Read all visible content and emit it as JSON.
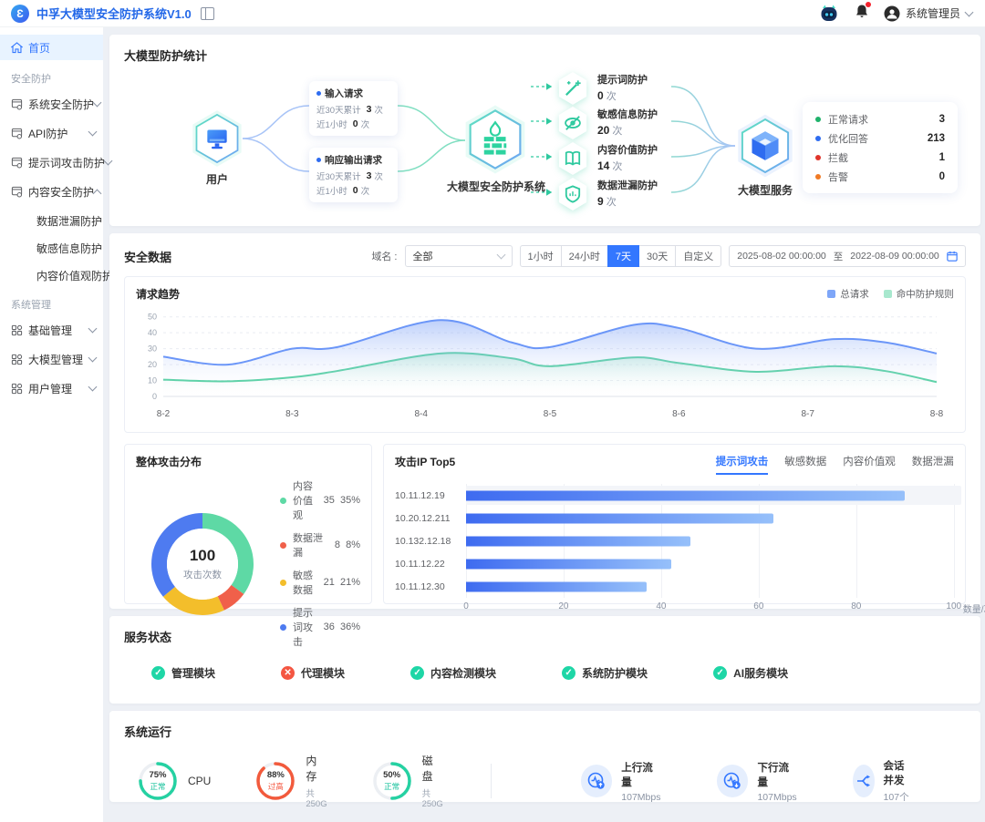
{
  "header": {
    "title": "中孚大模型安全防护系统V1.0",
    "user_name": "系统管理员"
  },
  "sidebar": {
    "home": "首页",
    "groups": [
      {
        "label": "安全防护",
        "items": [
          {
            "label": "系统安全防护"
          },
          {
            "label": "API防护"
          },
          {
            "label": "提示词攻击防护"
          },
          {
            "label": "内容安全防护",
            "children": [
              "数据泄漏防护",
              "敏感信息防护",
              "内容价值观防护"
            ]
          }
        ]
      },
      {
        "label": "系统管理",
        "items": [
          {
            "label": "基础管理"
          },
          {
            "label": "大模型管理"
          },
          {
            "label": "用户管理"
          }
        ]
      }
    ]
  },
  "protection_overview": {
    "title": "大模型防护统计",
    "user_label": "用户",
    "system_label": "大模型安全防护系统",
    "service_label": "大模型服务",
    "request_cards": [
      {
        "title": "输入请求",
        "rows": [
          {
            "label": "近30天累计",
            "value": "3",
            "unit": "次"
          },
          {
            "label": "近1小时",
            "value": "0",
            "unit": "次"
          }
        ]
      },
      {
        "title": "响应输出请求",
        "rows": [
          {
            "label": "近30天累计",
            "value": "3",
            "unit": "次"
          },
          {
            "label": "近1小时",
            "value": "0",
            "unit": "次"
          }
        ]
      }
    ],
    "protections": [
      {
        "icon": "wand-icon",
        "label": "提示词防护",
        "value": "0",
        "unit": "次"
      },
      {
        "icon": "eye-off-icon",
        "label": "敏感信息防护",
        "value": "20",
        "unit": "次"
      },
      {
        "icon": "book-icon",
        "label": "内容价值防护",
        "value": "14",
        "unit": "次"
      },
      {
        "icon": "shield-chart-icon",
        "label": "数据泄漏防护",
        "value": "9",
        "unit": "次"
      }
    ],
    "service_stats": [
      {
        "label": "正常请求",
        "value": "3",
        "color": "#1FB26B"
      },
      {
        "label": "优化回答",
        "value": "213",
        "color": "#2E6CF0"
      },
      {
        "label": "拦截",
        "value": "1",
        "color": "#E0342B"
      },
      {
        "label": "告警",
        "value": "0",
        "color": "#F07A24"
      }
    ]
  },
  "security_data": {
    "title": "安全数据",
    "domain_label": "域名 :",
    "domain_value": "全部",
    "time_filters": [
      "1小时",
      "24小时",
      "7天",
      "30天",
      "自定义"
    ],
    "active_filter": "7天",
    "date_from": "2025-08-02 00:00:00",
    "date_separator": "至",
    "date_to": "2022-08-09 00:00:00"
  },
  "chart_data": [
    {
      "id": "request-trend",
      "type": "area",
      "title": "请求趋势",
      "x_ticks": [
        "8-2",
        "8-3",
        "8-4",
        "8-5",
        "8-6",
        "8-7",
        "8-8"
      ],
      "y_ticks": [
        0,
        10,
        20,
        30,
        40,
        50
      ],
      "ylim": [
        0,
        55
      ],
      "x": [
        0,
        0.5,
        1,
        1.35,
        2.15,
        2.7,
        3,
        3.65,
        4,
        4.6,
        5.2,
        5.6,
        6
      ],
      "series": [
        {
          "name": "总请求",
          "color": "#6B96F8",
          "fill_from": "rgba(110,150,245,0.45)",
          "values": [
            25,
            20,
            30,
            31,
            48,
            34,
            31,
            45,
            43,
            30,
            36,
            34,
            27
          ]
        },
        {
          "name": "命中防护规则",
          "color": "#52CFA0",
          "fill_from": "rgba(130,220,180,0.40)",
          "values": [
            10.5,
            9.5,
            12,
            16,
            27,
            24,
            19,
            24.5,
            21,
            15.5,
            19,
            16,
            9
          ]
        }
      ],
      "legend_position": "top-right",
      "grid": true
    },
    {
      "id": "attack-distribution",
      "type": "pie",
      "title": "整体攻击分布",
      "center_value": "100",
      "center_label": "攻击次数",
      "slices": [
        {
          "label": "内容价值观",
          "value": 35,
          "pct": "35%",
          "color": "#5ED9A5"
        },
        {
          "label": "数据泄漏",
          "value": 8,
          "pct": "8%",
          "color": "#F0604A"
        },
        {
          "label": "敏感数据",
          "value": 21,
          "pct": "21%",
          "color": "#F3BE2B"
        },
        {
          "label": "提示词攻击",
          "value": 36,
          "pct": "36%",
          "color": "#4E7BF0"
        }
      ]
    },
    {
      "id": "attack-ip-top5",
      "type": "bar",
      "title": "攻击IP Top5",
      "tabs": [
        "提示词攻击",
        "敏感数据",
        "内容价值观",
        "数据泄漏"
      ],
      "active_tab": "提示词攻击",
      "categories": [
        "10.11.12.19",
        "10.20.12.211",
        "10.132.12.18",
        "10.11.12.22",
        "10.11.12.30"
      ],
      "values": [
        90,
        63,
        46,
        42,
        37
      ],
      "x_ticks": [
        0,
        20,
        40,
        60,
        80,
        100
      ],
      "xlim": [
        0,
        100
      ],
      "x_unit": "数量/次",
      "highlighted_row": 0
    }
  ],
  "service_status": {
    "title": "服务状态",
    "modules": [
      {
        "label": "管理模块",
        "status": "ok"
      },
      {
        "label": "代理模块",
        "status": "error"
      },
      {
        "label": "内容检测模块",
        "status": "ok"
      },
      {
        "label": "系统防护模块",
        "status": "ok"
      },
      {
        "label": "AI服务模块",
        "status": "ok"
      }
    ]
  },
  "system_running": {
    "title": "系统运行",
    "gauges": [
      {
        "percent": 75,
        "percent_label": "75%",
        "status": "正常",
        "status_color": "#18C29C",
        "color": "#25D1A2",
        "label": "CPU",
        "sub": ""
      },
      {
        "percent": 88,
        "percent_label": "88%",
        "status": "过高",
        "status_color": "#F4543C",
        "color": "#F25A3C",
        "label": "内存",
        "sub": "共250G"
      },
      {
        "percent": 50,
        "percent_label": "50%",
        "status": "正常",
        "status_color": "#18C29C",
        "color": "#25D1A2",
        "label": "磁盘",
        "sub": "共250G"
      }
    ],
    "metrics": [
      {
        "icon": "upload-traffic-icon",
        "label": "上行流量",
        "value": "107Mbps"
      },
      {
        "icon": "download-traffic-icon",
        "label": "下行流量",
        "value": "107Mbps"
      },
      {
        "icon": "concurrency-icon",
        "label": "会话并发",
        "value": "107个"
      }
    ]
  },
  "colors": {
    "accent": "#3377FF",
    "teal": "#2FC99F",
    "danger": "#F45642",
    "ok_green": "#1ED6A6"
  }
}
